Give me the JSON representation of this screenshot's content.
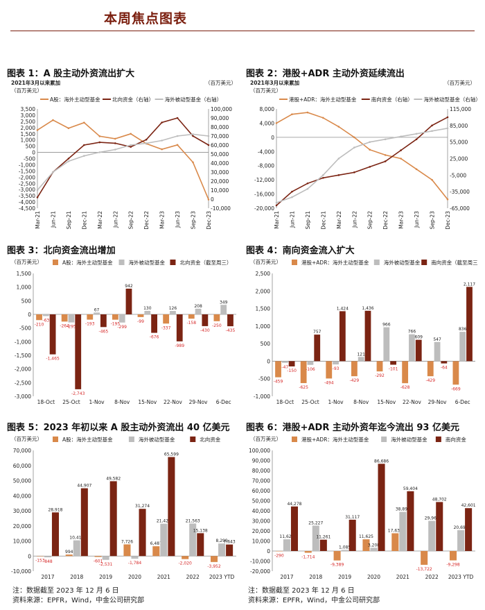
{
  "page": {
    "title": "本周焦点图表",
    "footnote_left": "注：数据截至 2023 年 12 月 6 日",
    "source_left": "资料来源：EPFR，Wind，中金公司研究部",
    "footnote_right": "注：数据截至 2023 年 12 月 6 日",
    "source_right": "资料来源：EPFR，Wind，中金公司研究部"
  },
  "colors": {
    "active_light": "#d9894a",
    "passive_gray": "#bdbdbd",
    "flow_dark": "#7b2413",
    "axis": "#8c8c8c",
    "neg_label": "#d62828",
    "title_brand": "#7a1e0e"
  },
  "chart_data": [
    {
      "id": "c1",
      "type": "line",
      "title": "图表 1：A 股主动外资流出扩大",
      "note": "2021年3月以来累加",
      "unit_left": "（百万美元）",
      "unit_right": "（百万美元）",
      "x": [
        "Mar-21",
        "Jun-21",
        "Sep-21",
        "Dec-21",
        "Mar-22",
        "Jun-22",
        "Sep-22",
        "Dec-22",
        "Mar-23",
        "Jun-23",
        "Sep-23",
        "Dec-23"
      ],
      "left_ticks": [
        3500,
        3000,
        2500,
        2000,
        1500,
        1000,
        500,
        0,
        -500,
        -1000,
        -1500,
        -2000,
        -2500,
        -3000,
        -3500,
        -4000,
        -4500
      ],
      "left_tick_labels": [
        "3,500",
        "3,000",
        "2,500",
        "2,000",
        "1,500",
        "1,000",
        "500",
        "0",
        "-500",
        "-1,000",
        "-1,500",
        "-2,000",
        "-2,500",
        "-3,000",
        "-3,500",
        "-4,000",
        "-4,500"
      ],
      "right_ticks": [
        100000,
        90000,
        80000,
        70000,
        60000,
        50000,
        40000,
        30000,
        20000,
        10000,
        0,
        -10000
      ],
      "right_tick_labels": [
        "100,000",
        "90,000",
        "80,000",
        "70,000",
        "60,000",
        "50,000",
        "40,000",
        "30,000",
        "20,000",
        "10,000",
        "0",
        "-10,000"
      ],
      "ylim": [
        -4500,
        3500
      ],
      "y2lim": [
        -10000,
        100000
      ],
      "series": [
        {
          "name": "A股：海外主动型基金",
          "axis": "left",
          "color_key": "active_light",
          "values": [
            1800,
            2600,
            1950,
            2400,
            1300,
            1100,
            1500,
            700,
            250,
            600,
            -800,
            -3800
          ]
        },
        {
          "name": "北向资金（右轴）",
          "axis": "right",
          "color_key": "flow_dark",
          "values": [
            2000,
            30000,
            45000,
            60000,
            63000,
            62000,
            58000,
            66000,
            85000,
            90000,
            70000,
            60000
          ]
        },
        {
          "name": "海外被动型基金（右轴）",
          "axis": "right",
          "color_key": "passive_gray",
          "values": [
            10000,
            30000,
            42000,
            48000,
            52000,
            55000,
            60000,
            62000,
            65000,
            70000,
            72000,
            70000
          ]
        }
      ]
    },
    {
      "id": "c2",
      "type": "line",
      "title": "图表 2：港股+ADR 主动外资延续流出",
      "note": "2021年3月以来累加",
      "unit_left": "（百万美元）",
      "unit_right": "（百万美元）",
      "x": [
        "Mar-21",
        "Jun-21",
        "Sep-21",
        "Dec-21",
        "Mar-22",
        "Jun-22",
        "Sep-22",
        "Dec-22",
        "Mar-23",
        "Jun-23",
        "Sep-23",
        "Dec-23"
      ],
      "left_ticks": [
        8000,
        4000,
        0,
        -4000,
        -8000,
        -12000,
        -16000,
        -20000
      ],
      "left_tick_labels": [
        "8,000",
        "4,000",
        "0",
        "-4,000",
        "-8,000",
        "-12,000",
        "-16,000",
        "-20,000"
      ],
      "right_ticks": [
        115000,
        85000,
        55000,
        25000,
        -5000,
        -35000,
        -65000
      ],
      "right_tick_labels": [
        "115,000",
        "85,000",
        "55,000",
        "25,000",
        "-5,000",
        "-35,000",
        "-65,000"
      ],
      "ylim": [
        -20000,
        8000
      ],
      "y2lim": [
        -65000,
        115000
      ],
      "series": [
        {
          "name": "港股+ADR：海外主动型基金",
          "axis": "left",
          "color_key": "active_light",
          "values": [
            4000,
            6500,
            7000,
            5500,
            3000,
            0,
            -3500,
            -5000,
            -6000,
            -9000,
            -12000,
            -17500
          ]
        },
        {
          "name": "南向资金（右轴）",
          "axis": "right",
          "color_key": "flow_dark",
          "values": [
            -60000,
            -35000,
            -20000,
            -10000,
            -5000,
            0,
            10000,
            20000,
            40000,
            60000,
            85000,
            100000
          ]
        },
        {
          "name": "海外被动型基金（右轴）",
          "axis": "right",
          "color_key": "passive_gray",
          "values": [
            -55000,
            -45000,
            -30000,
            -5000,
            25000,
            45000,
            55000,
            60000,
            65000,
            70000,
            75000,
            80000
          ]
        }
      ]
    },
    {
      "id": "c3",
      "type": "bar",
      "title": "图表 3：北向资金流出增加",
      "unit": "（百万美元）",
      "categories": [
        "18-Oct",
        "25-Oct",
        "1-Nov",
        "8-Nov",
        "15-Nov",
        "22-Nov",
        "29-Nov",
        "6-Dec"
      ],
      "ticks": [
        1500,
        1000,
        500,
        0,
        -500,
        -1000,
        -1500,
        -2000,
        -2500,
        -3000
      ],
      "tick_labels": [
        "1,500",
        "1,000",
        "500",
        "0",
        "-500",
        "-1,000",
        "-1,500",
        "-2,000",
        "-2,500",
        "-3,000"
      ],
      "ylim": [
        -3000,
        1500
      ],
      "series": [
        {
          "name": "A股：海外主动型基金",
          "color_key": "active_light",
          "values": [
            -210,
            -264,
            -193,
            -195,
            -99,
            -337,
            -158,
            -250
          ],
          "labels": [
            "-210",
            "-264",
            "-193",
            "-195",
            "-99",
            "-337",
            "-158",
            "-250"
          ]
        },
        {
          "name": "海外被动型基金",
          "color_key": "passive_gray",
          "values": [
            -63,
            -295,
            67,
            -299,
            130,
            126,
            208,
            349
          ],
          "labels": [
            "-63",
            "-295",
            "67",
            "-299",
            "130",
            "126",
            "208",
            "349"
          ]
        },
        {
          "name": "北向资金（截至周三）",
          "color_key": "flow_dark",
          "values": [
            -1465,
            -2743,
            -465,
            942,
            -676,
            -989,
            -430,
            -435
          ],
          "labels": [
            "-1,465",
            "-2,743",
            "-465",
            "942",
            "-676",
            "-989",
            "-430",
            "-435"
          ]
        }
      ]
    },
    {
      "id": "c4",
      "type": "bar",
      "title": "图表 4：南向资金流入扩大",
      "unit": "（百万美元）",
      "categories": [
        "18-Oct",
        "25-Oct",
        "1-Nov",
        "8-Nov",
        "15-Nov",
        "22-Nov",
        "29-Nov",
        "6-Dec"
      ],
      "ticks": [
        2500,
        2000,
        1500,
        1000,
        500,
        0,
        -500,
        -1000
      ],
      "tick_labels": [
        "2,500",
        "2,000",
        "1,500",
        "1,000",
        "500",
        "0",
        "-500",
        "-1,000"
      ],
      "ylim": [
        -1000,
        2500
      ],
      "series": [
        {
          "name": "港股+ADR：海外主动型基金",
          "color_key": "active_light",
          "values": [
            -459,
            -625,
            -494,
            -429,
            -292,
            -628,
            -429,
            -669
          ],
          "labels": [
            "-459",
            "-625",
            "-494",
            "-429",
            "-292",
            "-628",
            "-429",
            "-669"
          ]
        },
        {
          "name": "海外被动型基金",
          "color_key": "passive_gray",
          "values": [
            -47,
            -106,
            -93,
            121,
            966,
            766,
            547,
            836
          ],
          "labels": [
            "-47",
            "-106",
            "-93",
            "121",
            "966",
            "766",
            "547",
            "836"
          ]
        },
        {
          "name": "南向资金（截至周三）",
          "color_key": "flow_dark",
          "values": [
            -150,
            757,
            1424,
            1436,
            -101,
            609,
            -64,
            2117
          ],
          "labels": [
            "-150",
            "757",
            "1,424",
            "1,436",
            "-101",
            "609",
            "-64",
            "2,117"
          ]
        }
      ]
    },
    {
      "id": "c5",
      "type": "bar",
      "title": "图表 5：2023 年初以来 A 股主动外资流出 40 亿美元",
      "unit": "（百万美元）",
      "categories": [
        "2017",
        "2018",
        "2019",
        "2020",
        "2021",
        "2022",
        "2023 YTD"
      ],
      "ticks": [
        70000,
        60000,
        50000,
        40000,
        30000,
        20000,
        10000,
        0,
        -10000
      ],
      "tick_labels": [
        "70,000",
        "60,000",
        "50,000",
        "40,000",
        "30,000",
        "20,000",
        "10,000",
        "0",
        "-10,000"
      ],
      "ylim": [
        -10000,
        70000
      ],
      "series": [
        {
          "name": "A股：海外主动型基金",
          "color_key": "active_light",
          "values": [
            -153,
            994,
            -601,
            7726,
            6487,
            -2020,
            -3952
          ],
          "labels": [
            "-153",
            "994",
            "-601",
            "7,726",
            "6,487",
            "-2,020",
            "-3,952"
          ]
        },
        {
          "name": "海外被动型基金",
          "color_key": "passive_gray",
          "values": [
            -848,
            10417,
            -2531,
            -1784,
            21426,
            21563,
            8299
          ],
          "labels": [
            "-848",
            "10,417",
            "-2,531",
            "-1,784",
            "21,426",
            "21,563",
            "8,299"
          ]
        },
        {
          "name": "北向资金",
          "color_key": "flow_dark",
          "values": [
            28918,
            44907,
            49582,
            31274,
            65599,
            15138,
            7643
          ],
          "labels": [
            "28,918",
            "44,907",
            "49,582",
            "31,274",
            "65,599",
            "15,138",
            "7,643"
          ]
        }
      ]
    },
    {
      "id": "c6",
      "type": "bar",
      "title": "图表 6：港股+ADR 主动外资年迄今流出 93 亿美元",
      "unit": "（百万美元）",
      "categories": [
        "2017",
        "2018",
        "2019",
        "2020",
        "2021",
        "2022",
        "2023 YTD"
      ],
      "ticks": [
        100000,
        90000,
        80000,
        70000,
        60000,
        50000,
        40000,
        30000,
        20000,
        10000,
        0,
        -10000,
        -20000
      ],
      "tick_labels": [
        "100,000",
        "90,000",
        "80,000",
        "70,000",
        "60,000",
        "50,000",
        "40,000",
        "30,000",
        "20,000",
        "10,000",
        "0",
        "-10,000",
        "-20,000"
      ],
      "ylim": [
        -20000,
        100000
      ],
      "series": [
        {
          "name": "港股+ADR：海外主动型基金",
          "color_key": "active_light",
          "values": [
            -290,
            -1714,
            -9389,
            11625,
            17637,
            -13722,
            -9298
          ],
          "labels": [
            "-290",
            "-1,714",
            "-9,389",
            "11,625",
            "17,637",
            "-13,722",
            "-9,298"
          ]
        },
        {
          "name": "海外被动型基金",
          "color_key": "passive_gray",
          "values": [
            11622,
            25227,
            1085,
            3208,
            38894,
            29968,
            20693
          ],
          "labels": [
            "11,622",
            "25,227",
            "1,085",
            "3,208",
            "38,894",
            "29,968",
            "20,693"
          ]
        },
        {
          "name": "南向资金",
          "color_key": "flow_dark",
          "values": [
            44278,
            11261,
            31117,
            86686,
            59404,
            48702,
            42601
          ],
          "labels": [
            "44,278",
            "11,261",
            "31,117",
            "86,686",
            "59,404",
            "48,702",
            "42,601"
          ]
        }
      ]
    }
  ]
}
